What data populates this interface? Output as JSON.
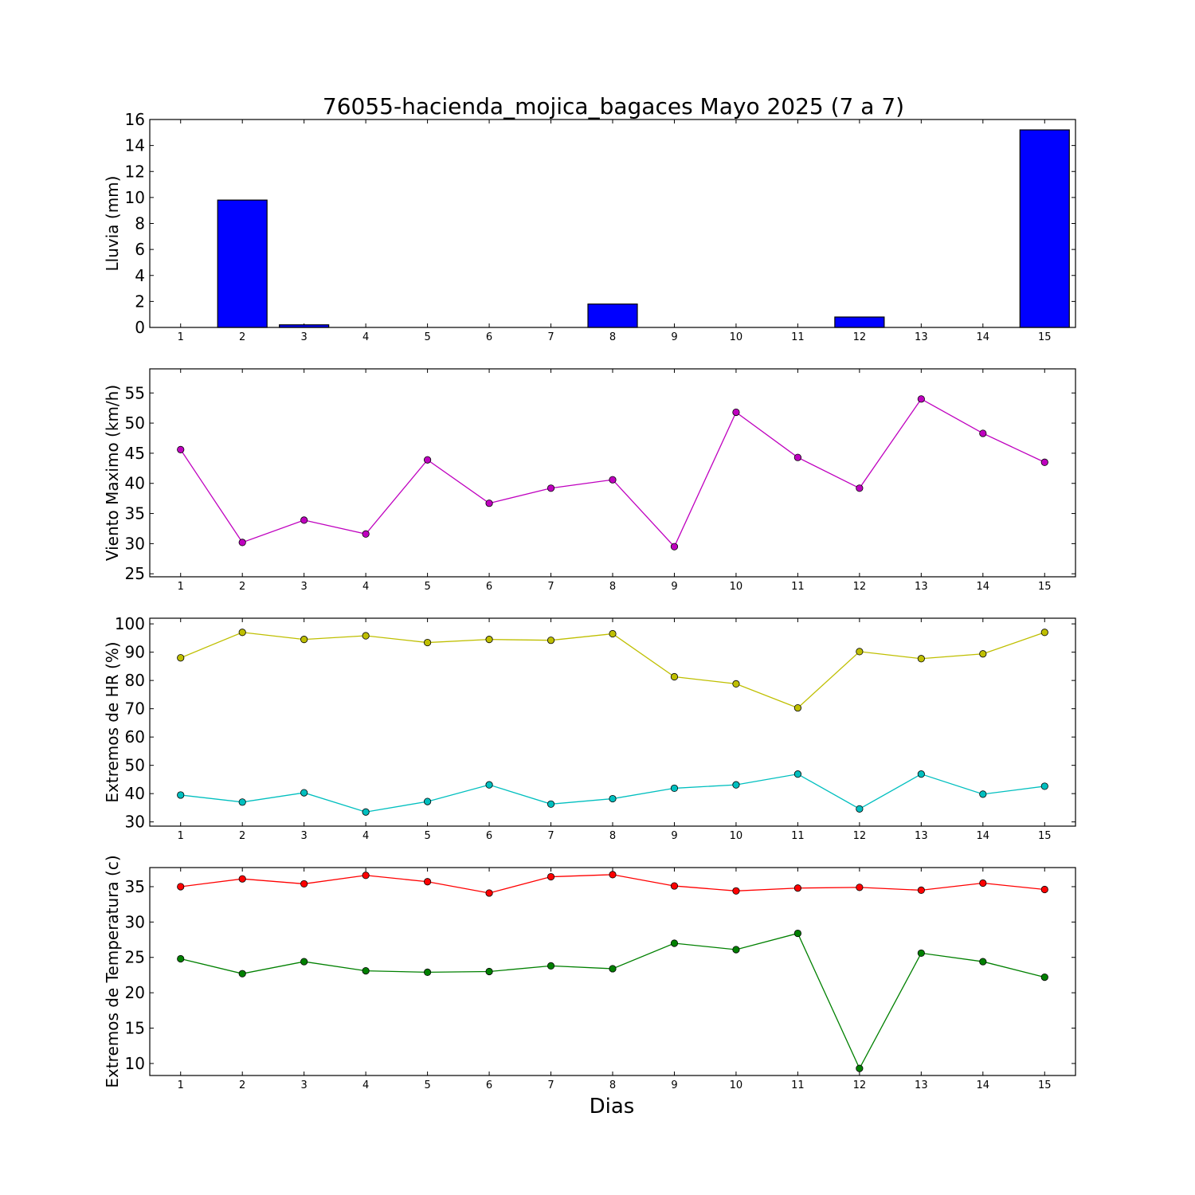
{
  "chart_data": {
    "title": "76055-hacienda_mojica_bagaces Mayo 2025  (7 a 7)",
    "xlabel": "Dias",
    "categories": [
      1,
      2,
      3,
      4,
      5,
      6,
      7,
      8,
      9,
      10,
      11,
      12,
      13,
      14,
      15
    ],
    "panels": [
      {
        "type": "bar",
        "ylabel": "Lluvia (mm)",
        "ylim": [
          0,
          16
        ],
        "yticks": [
          0,
          2,
          4,
          6,
          8,
          10,
          12,
          14,
          16
        ],
        "series": [
          {
            "color": "#0000ff",
            "values": [
              0,
              9.8,
              0.2,
              0,
              0,
              0,
              0,
              1.8,
              0,
              0,
              0,
              0.8,
              0,
              0,
              15.2
            ]
          }
        ]
      },
      {
        "type": "line",
        "ylabel": "Viento Maximo (km/h)",
        "ylim": [
          24.5,
          59
        ],
        "yticks": [
          25,
          30,
          35,
          40,
          45,
          50,
          55
        ],
        "series": [
          {
            "color": "#bf00bf",
            "values": [
              45.6,
              30.2,
              33.9,
              31.6,
              43.9,
              36.7,
              39.2,
              40.6,
              29.5,
              51.8,
              44.3,
              39.2,
              54.0,
              48.3,
              43.5
            ]
          }
        ]
      },
      {
        "type": "line",
        "ylabel": "Extremos de HR (%)",
        "ylim": [
          28.5,
          102
        ],
        "yticks": [
          30,
          40,
          50,
          60,
          70,
          80,
          90,
          100
        ],
        "series": [
          {
            "color": "#bfbf00",
            "values": [
              88,
              97,
              94.5,
              95.8,
              93.4,
              94.5,
              94.2,
              96.5,
              81.3,
              78.8,
              70.3,
              90.2,
              87.7,
              89.4,
              97
            ]
          },
          {
            "color": "#00bfbf",
            "values": [
              39.5,
              37,
              40.3,
              33.5,
              37.2,
              43.1,
              36.3,
              38.2,
              41.9,
              43.1,
              46.9,
              34.6,
              46.9,
              39.8,
              42.6
            ]
          }
        ]
      },
      {
        "type": "line",
        "ylabel": "Extremos de Temperatura (c)",
        "ylim": [
          8.3,
          37.7
        ],
        "yticks": [
          10,
          15,
          20,
          25,
          30,
          35
        ],
        "series": [
          {
            "color": "#ff0000",
            "values": [
              35.0,
              36.1,
              35.4,
              36.6,
              35.7,
              34.1,
              36.4,
              36.7,
              35.1,
              34.4,
              34.8,
              34.9,
              34.5,
              35.5,
              34.6
            ]
          },
          {
            "color": "#008000",
            "values": [
              24.8,
              22.7,
              24.4,
              23.1,
              22.9,
              23.0,
              23.8,
              23.4,
              27.0,
              26.1,
              28.4,
              9.3,
              25.6,
              24.4,
              22.2
            ]
          }
        ]
      }
    ]
  }
}
